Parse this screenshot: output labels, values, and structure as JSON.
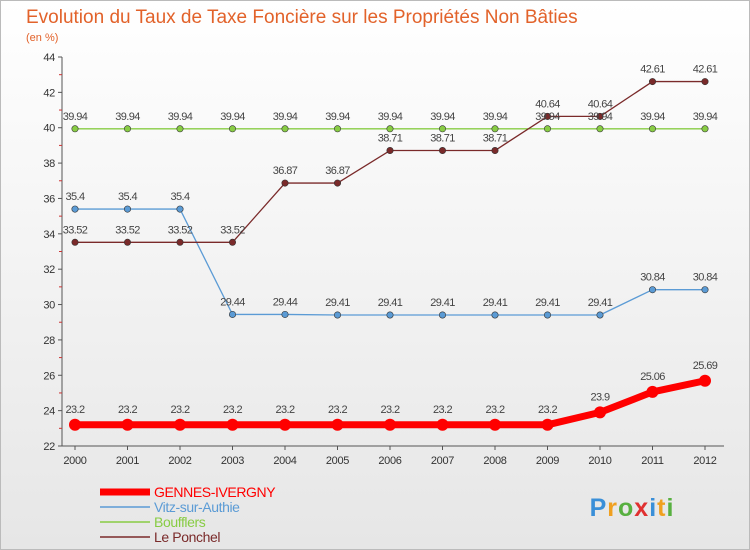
{
  "chart_data": {
    "type": "line",
    "title": "Evolution du Taux de Taxe Foncière sur les Propriétés Non Bâties",
    "subtitle": "(en %)",
    "xlabel": "",
    "ylabel": "",
    "categories": [
      "2000",
      "2001",
      "2002",
      "2003",
      "2004",
      "2005",
      "2006",
      "2007",
      "2008",
      "2009",
      "2010",
      "2011",
      "2012"
    ],
    "ylim": [
      22,
      44
    ],
    "yticks": [
      "22",
      "24",
      "26",
      "28",
      "30",
      "32",
      "34",
      "36",
      "38",
      "40",
      "42",
      "44"
    ],
    "grid": false,
    "legend_position": "bottom-left",
    "series": [
      {
        "name": "GENNES-IVERGNY",
        "color": "#ff0000",
        "emphasis": true,
        "values": [
          23.2,
          23.2,
          23.2,
          23.2,
          23.2,
          23.2,
          23.2,
          23.2,
          23.2,
          23.2,
          23.9,
          25.06,
          25.69
        ],
        "labels": [
          "23.2",
          "23.2",
          "23.2",
          "23.2",
          "23.2",
          "23.2",
          "23.2",
          "23.2",
          "23.2",
          "23.2",
          "23.9",
          "25.06",
          "25.69"
        ]
      },
      {
        "name": "Vitz-sur-Authie",
        "color": "#5b9bd5",
        "emphasis": false,
        "values": [
          35.4,
          35.4,
          35.4,
          29.44,
          29.44,
          29.41,
          29.41,
          29.41,
          29.41,
          29.41,
          29.41,
          30.84,
          30.84
        ],
        "labels": [
          "35.4",
          "35.4",
          "35.4",
          "29.44",
          "29.44",
          "29.41",
          "29.41",
          "29.41",
          "29.41",
          "29.41",
          "29.41",
          "30.84",
          "30.84"
        ]
      },
      {
        "name": "Boufflers",
        "color": "#88cc44",
        "emphasis": false,
        "values": [
          39.94,
          39.94,
          39.94,
          39.94,
          39.94,
          39.94,
          39.94,
          39.94,
          39.94,
          39.94,
          39.94,
          39.94,
          39.94
        ],
        "labels": [
          "39.94",
          "39.94",
          "39.94",
          "39.94",
          "39.94",
          "39.94",
          "39.94",
          "39.94",
          "39.94",
          "39.94",
          "39.94",
          "39.94",
          "39.94"
        ]
      },
      {
        "name": "Le Ponchel",
        "color": "#7a2a2a",
        "emphasis": false,
        "values": [
          33.52,
          33.52,
          33.52,
          33.52,
          36.87,
          36.87,
          38.71,
          38.71,
          38.71,
          40.64,
          40.64,
          42.61,
          42.61
        ],
        "labels": [
          "33.52",
          "33.52",
          "33.52",
          "33.52",
          "36.87",
          "36.87",
          "38.71",
          "38.71",
          "38.71",
          "40.64",
          "40.64",
          "42.61",
          "42.61"
        ]
      }
    ],
    "watermark": "Proxiti"
  }
}
